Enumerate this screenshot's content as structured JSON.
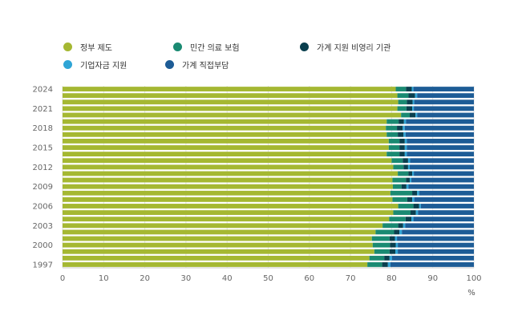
{
  "chart_data": {
    "type": "bar",
    "orientation": "horizontal",
    "stacked": true,
    "xlabel": "%",
    "xlim": [
      0,
      100
    ],
    "xticks": [
      0,
      10,
      20,
      30,
      40,
      50,
      60,
      70,
      80,
      90,
      100
    ],
    "grid": true,
    "legend_position": "top",
    "categories": [
      "1997",
      "1998",
      "1999",
      "2000",
      "2001",
      "2002",
      "2003",
      "2004",
      "2005",
      "2006",
      "2007",
      "2008",
      "2009",
      "2010",
      "2011",
      "2012",
      "2013",
      "2014",
      "2015",
      "2016",
      "2017",
      "2018",
      "2019",
      "2020",
      "2021",
      "2022",
      "2023",
      "2024"
    ],
    "category_labels": [
      "1997",
      "",
      "",
      "2000",
      "",
      "",
      "2003",
      "",
      "",
      "2006",
      "",
      "",
      "2009",
      "",
      "",
      "2012",
      "",
      "",
      "2015",
      "",
      "",
      "2018",
      "",
      "",
      "2021",
      "",
      "",
      "2024"
    ],
    "series": [
      {
        "name": "정부 제도",
        "color": "#a5b832",
        "values": [
          74.1,
          74.6,
          75.8,
          75.4,
          75.2,
          76.1,
          77.8,
          79.4,
          80.4,
          81.6,
          80.2,
          79.7,
          80.3,
          80.2,
          81.5,
          80.4,
          80.0,
          78.8,
          79.3,
          79.3,
          78.8,
          78.6,
          78.8,
          82.3,
          81.4,
          81.6,
          81.4,
          81.0
        ]
      },
      {
        "name": "민간 의료 보험",
        "color": "#1a8a72",
        "values": [
          3.6,
          3.6,
          3.7,
          4.2,
          4.3,
          4.5,
          3.8,
          4.0,
          4.2,
          3.7,
          3.6,
          5.3,
          2.1,
          3.3,
          2.6,
          2.5,
          2.7,
          3.1,
          2.6,
          2.6,
          2.7,
          2.7,
          2.9,
          2.1,
          2.2,
          2.1,
          2.7,
          2.5
        ]
      },
      {
        "name": "가계 지원 비영리 기관",
        "color": "#0a3f4e",
        "values": [
          1.4,
          1.3,
          1.4,
          1.4,
          1.3,
          1.3,
          1.2,
          1.4,
          1.3,
          1.4,
          1.2,
          1.2,
          1.2,
          0.9,
          0.9,
          1.1,
          1.3,
          1.3,
          1.3,
          1.3,
          1.4,
          1.4,
          1.3,
          1.4,
          1.4,
          1.4,
          1.6,
          1.4
        ]
      },
      {
        "name": "기업자금 지원",
        "color": "#2fa5d6",
        "values": [
          0.6,
          0.6,
          0.6,
          0.5,
          0.5,
          0.6,
          0.5,
          0.5,
          0.5,
          0.4,
          0.5,
          0.5,
          0.5,
          0.4,
          0.4,
          0.4,
          0.5,
          0.5,
          0.5,
          0.5,
          0.5,
          0.5,
          0.5,
          0.4,
          0.4,
          0.4,
          0.5,
          0.4
        ]
      },
      {
        "name": "가계 직접부담",
        "color": "#1d5c96",
        "values": [
          20.3,
          19.9,
          18.5,
          18.5,
          18.7,
          17.5,
          16.7,
          14.7,
          13.6,
          12.9,
          14.5,
          13.3,
          15.9,
          15.2,
          14.6,
          15.6,
          15.5,
          16.3,
          16.3,
          16.3,
          16.6,
          16.8,
          16.5,
          13.8,
          14.6,
          14.5,
          13.8,
          14.7
        ]
      }
    ]
  }
}
